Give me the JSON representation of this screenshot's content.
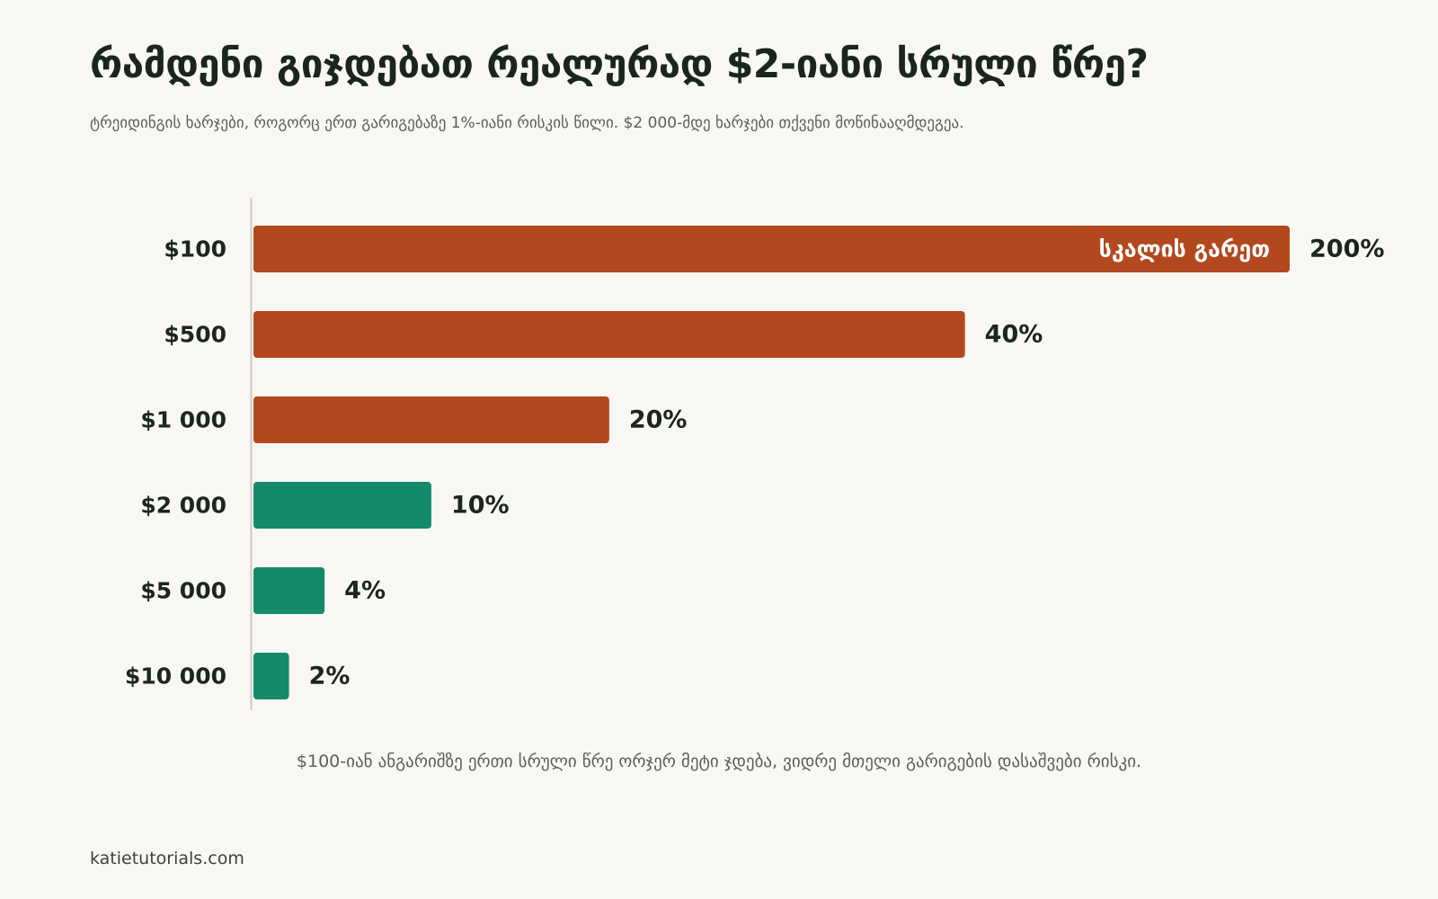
{
  "title": "რამდენი გიჯდებათ რეალურად $2-იანი სრული წრე?",
  "subtitle": "ტრეიდინგის ხარჯები, როგორც ერთ გარიგებაზე 1%-იანი რისკის წილი. $2 000-მდე ხარჯები თქვენი მოწინააღმდეგეა.",
  "footnote": "$100-იან ანგარიშზე ერთი სრული წრე ორჯერ მეტი ჯდება, ვიდრე მთელი გარიგების დასაშვები რისკი.",
  "source": "katietutorials.com",
  "colors": {
    "high_cost": "#b3481e",
    "low_cost": "#138a6b",
    "axis": "#cfcac2"
  },
  "chart_data": {
    "type": "bar",
    "orientation": "horizontal",
    "categories": [
      "$100",
      "$500",
      "$1 000",
      "$2 000",
      "$5 000",
      "$10 000"
    ],
    "values": [
      200,
      40,
      20,
      10,
      4,
      2
    ],
    "value_labels": [
      "200%",
      "40%",
      "20%",
      "10%",
      "4%",
      "2%"
    ],
    "bar_colors": [
      "#b3481e",
      "#b3481e",
      "#b3481e",
      "#138a6b",
      "#138a6b",
      "#138a6b"
    ],
    "xlim": [
      0,
      48
    ],
    "annotations": [
      {
        "category": "$100",
        "text": "სკალის გარეთ"
      }
    ],
    "xlabel": "",
    "ylabel": "",
    "grid": false
  }
}
